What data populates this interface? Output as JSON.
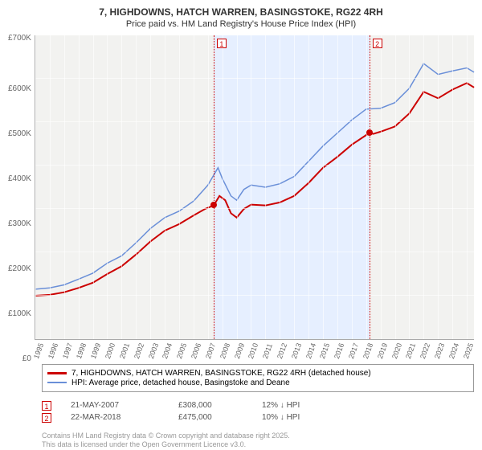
{
  "title_line1": "7, HIGHDOWNS, HATCH WARREN, BASINGSTOKE, RG22 4RH",
  "title_line2": "Price paid vs. HM Land Registry's House Price Index (HPI)",
  "chart": {
    "type": "line",
    "background_color": "#f2f2f0",
    "grid_color": "#ffffff",
    "ylim": [
      0,
      700000
    ],
    "ytick_labels": [
      "£700K",
      "£600K",
      "£500K",
      "£400K",
      "£300K",
      "£200K",
      "£100K",
      "£0"
    ],
    "xlim": [
      1995,
      2025.5
    ],
    "xtick_labels": [
      "1995",
      "1996",
      "1997",
      "1998",
      "1999",
      "2000",
      "2001",
      "2002",
      "2003",
      "2004",
      "2005",
      "2006",
      "2007",
      "2008",
      "2009",
      "2010",
      "2011",
      "2012",
      "2013",
      "2014",
      "2015",
      "2016",
      "2017",
      "2018",
      "2019",
      "2020",
      "2021",
      "2022",
      "2023",
      "2024",
      "2025"
    ],
    "highlight_band": {
      "start_year": 2007.4,
      "end_year": 2018.22,
      "color": "#e6efff"
    },
    "series": [
      {
        "name": "price_paid",
        "label": "7, HIGHDOWNS, HATCH WARREN, BASINGSTOKE, RG22 4RH (detached house)",
        "color": "#cc0000",
        "line_width": 2,
        "data": [
          [
            1995,
            100000
          ],
          [
            1996,
            102000
          ],
          [
            1997,
            108000
          ],
          [
            1998,
            118000
          ],
          [
            1999,
            130000
          ],
          [
            2000,
            150000
          ],
          [
            2001,
            168000
          ],
          [
            2002,
            195000
          ],
          [
            2003,
            225000
          ],
          [
            2004,
            250000
          ],
          [
            2005,
            265000
          ],
          [
            2006,
            285000
          ],
          [
            2006.8,
            300000
          ],
          [
            2007.4,
            308000
          ],
          [
            2007.8,
            330000
          ],
          [
            2008.2,
            320000
          ],
          [
            2008.6,
            290000
          ],
          [
            2009,
            280000
          ],
          [
            2009.5,
            300000
          ],
          [
            2010,
            310000
          ],
          [
            2011,
            308000
          ],
          [
            2012,
            315000
          ],
          [
            2013,
            330000
          ],
          [
            2014,
            360000
          ],
          [
            2015,
            395000
          ],
          [
            2016,
            420000
          ],
          [
            2017,
            448000
          ],
          [
            2018.22,
            475000
          ],
          [
            2018.5,
            473000
          ],
          [
            2019,
            478000
          ],
          [
            2020,
            490000
          ],
          [
            2021,
            520000
          ],
          [
            2022,
            570000
          ],
          [
            2023,
            555000
          ],
          [
            2024,
            575000
          ],
          [
            2025,
            590000
          ],
          [
            2025.5,
            580000
          ]
        ]
      },
      {
        "name": "hpi",
        "label": "HPI: Average price, detached house, Basingstoke and Deane",
        "color": "#6a8fd8",
        "line_width": 1.5,
        "data": [
          [
            1995,
            115000
          ],
          [
            1996,
            118000
          ],
          [
            1997,
            125000
          ],
          [
            1998,
            138000
          ],
          [
            1999,
            152000
          ],
          [
            2000,
            175000
          ],
          [
            2001,
            192000
          ],
          [
            2002,
            222000
          ],
          [
            2003,
            255000
          ],
          [
            2004,
            280000
          ],
          [
            2005,
            295000
          ],
          [
            2006,
            318000
          ],
          [
            2007,
            355000
          ],
          [
            2007.7,
            395000
          ],
          [
            2008,
            370000
          ],
          [
            2008.6,
            330000
          ],
          [
            2009,
            320000
          ],
          [
            2009.5,
            345000
          ],
          [
            2010,
            355000
          ],
          [
            2011,
            350000
          ],
          [
            2012,
            358000
          ],
          [
            2013,
            375000
          ],
          [
            2014,
            410000
          ],
          [
            2015,
            445000
          ],
          [
            2016,
            475000
          ],
          [
            2017,
            505000
          ],
          [
            2018,
            530000
          ],
          [
            2019,
            532000
          ],
          [
            2020,
            545000
          ],
          [
            2021,
            578000
          ],
          [
            2022,
            635000
          ],
          [
            2023,
            610000
          ],
          [
            2024,
            618000
          ],
          [
            2025,
            625000
          ],
          [
            2025.5,
            615000
          ]
        ]
      }
    ],
    "sale_markers": [
      {
        "num": "1",
        "year": 2007.4,
        "price": 308000,
        "dot_color": "#cc0000"
      },
      {
        "num": "2",
        "year": 2018.22,
        "price": 475000,
        "dot_color": "#cc0000"
      }
    ]
  },
  "legend": {
    "series1_label": "7, HIGHDOWNS, HATCH WARREN, BASINGSTOKE, RG22 4RH (detached house)",
    "series2_label": "HPI: Average price, detached house, Basingstoke and Deane"
  },
  "marker_table": [
    {
      "num": "1",
      "date": "21-MAY-2007",
      "price": "£308,000",
      "delta": "12% ↓ HPI"
    },
    {
      "num": "2",
      "date": "22-MAR-2018",
      "price": "£475,000",
      "delta": "10% ↓ HPI"
    }
  ],
  "footnote_line1": "Contains HM Land Registry data © Crown copyright and database right 2025.",
  "footnote_line2": "This data is licensed under the Open Government Licence v3.0."
}
